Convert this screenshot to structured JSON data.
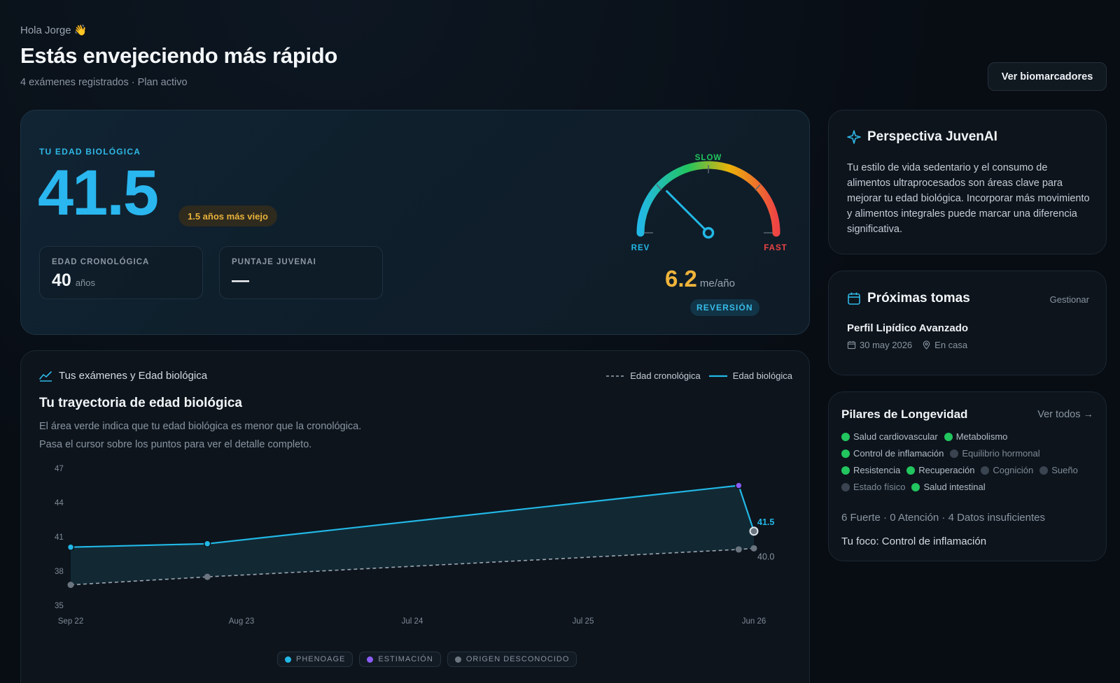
{
  "header": {
    "greeting": "Hola Jorge 👋",
    "title": "Estás envejeciendo más rápido",
    "subtitle": "4 exámenes registrados · Plan activo",
    "biomarkers_button": "Ver biomarcadores"
  },
  "hero": {
    "label": "TU EDAD BIOLÓGICA",
    "value": "41.5",
    "badge": "1.5 años más viejo",
    "chrono_label": "EDAD CRONOLÓGICA",
    "chrono_value": "40",
    "chrono_unit": "años",
    "score_label": "PUNTAJE JUVENAI",
    "score_value": "—",
    "gauge": {
      "top_label": "SLOW",
      "left_label": "REV",
      "right_label": "FAST",
      "needle_fraction": 0.25,
      "colors": {
        "rev": "#22b8e6",
        "slow": "#22c55e",
        "mid": "#eab308",
        "fast": "#ef4444"
      }
    },
    "pace_value": "6.2",
    "pace_unit": "me/año",
    "pace_badge": "REVERSIÓN"
  },
  "perspective": {
    "title": "Perspectiva JuvenAI",
    "body": "Tu estilo de vida sedentario y el consumo de alimentos ultraprocesados son áreas clave para mejorar tu edad biológica. Incorporar más movimiento y alimentos integrales puede marcar una diferencia significativa."
  },
  "upcoming": {
    "title": "Próximas tomas",
    "manage": "Gestionar",
    "item_name": "Perfil Lipídico Avanzado",
    "item_date": "30 may 2026",
    "item_place": "En casa"
  },
  "pillars": {
    "title": "Pilares de Longevidad",
    "view_all": "Ver todos →",
    "rows": [
      [
        {
          "label": "Salud cardiovascular",
          "status": "strong"
        },
        {
          "label": "Metabolismo",
          "status": "strong"
        }
      ],
      [
        {
          "label": "Control de inflamación",
          "status": "strong"
        },
        {
          "label": "Equilibrio hormonal",
          "status": "none"
        }
      ],
      [
        {
          "label": "Resistencia",
          "status": "strong"
        },
        {
          "label": "Recuperación",
          "status": "strong"
        },
        {
          "label": "Cognición",
          "status": "none"
        },
        {
          "label": "Sueño",
          "status": "none"
        }
      ],
      [
        {
          "label": "Estado físico",
          "status": "none"
        },
        {
          "label": "Salud intestinal",
          "status": "strong"
        }
      ]
    ],
    "summary": "6 Fuerte · 0 Atención · 4 Datos insuficientes",
    "focus": "Tu foco: Control de inflamación"
  },
  "trajectory": {
    "header": "Tus exámenes y Edad biológica",
    "legend_chrono": "Edad cronológica",
    "legend_bio": "Edad biológica",
    "title": "Tu trayectoria de edad biológica",
    "desc_line1": "El área verde indica que tu edad biológica es menor que la cronológica.",
    "desc_line2": "Pasa el cursor sobre los puntos para ver el detalle completo.",
    "sources": [
      {
        "label": "PHENOAGE",
        "color": "#22b8e6"
      },
      {
        "label": "ESTIMACIÓN",
        "color": "#8b5cf6"
      },
      {
        "label": "ORIGEN DESCONOCIDO",
        "color": "#6b7580"
      }
    ]
  },
  "chart_data": {
    "type": "line",
    "x_ticks": [
      "Sep 22",
      "Aug 23",
      "Jul 24",
      "Jul 25",
      "Jun 26"
    ],
    "y_ticks": [
      35,
      38,
      41,
      44,
      47
    ],
    "ylim": [
      35,
      47
    ],
    "series": [
      {
        "name": "Edad biológica",
        "color": "#22b8e6",
        "points": [
          {
            "x": "2022-09",
            "y": 40.1,
            "source": "phenoage"
          },
          {
            "x": "2023-06",
            "y": 40.4,
            "source": "phenoage"
          },
          {
            "x": "2026-05",
            "y": 45.5,
            "source": "estimacion"
          },
          {
            "x": "2026-06",
            "y": 41.5,
            "source": "desconocido"
          }
        ]
      },
      {
        "name": "Edad cronológica",
        "color": "#9aa5b1",
        "dashed": true,
        "points": [
          {
            "x": "2022-09",
            "y": 36.8
          },
          {
            "x": "2023-06",
            "y": 37.5
          },
          {
            "x": "2026-05",
            "y": 39.9
          },
          {
            "x": "2026-06",
            "y": 40.0
          }
        ]
      }
    ],
    "end_labels": {
      "bio": "41.5",
      "chrono": "40.0"
    }
  }
}
